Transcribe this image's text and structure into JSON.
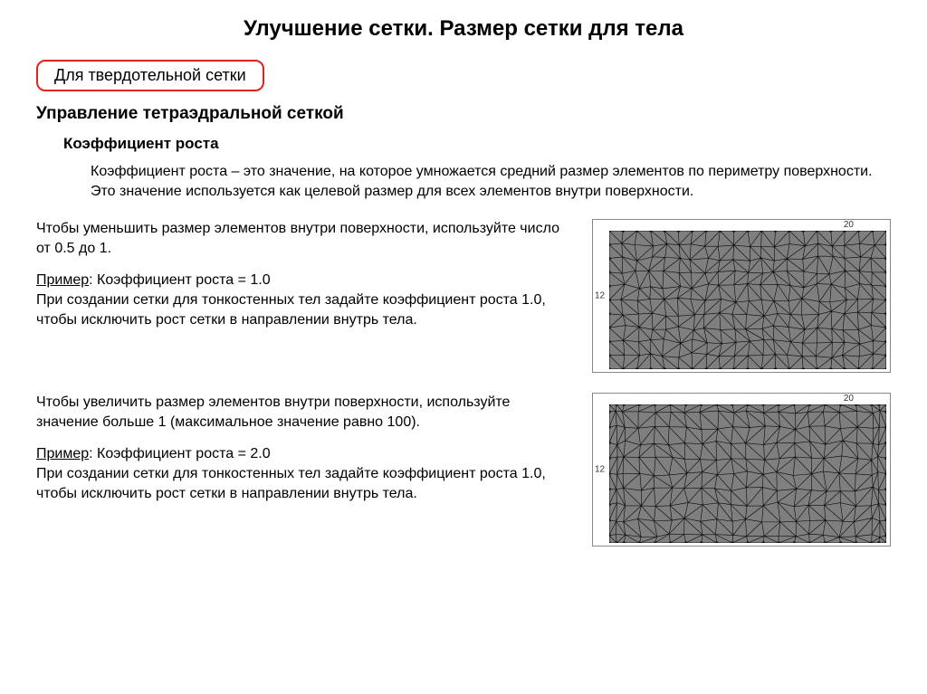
{
  "title": "Улучшение сетки. Размер сетки для тела",
  "tag": "Для твердотельной сетки",
  "subtitle": "Управление тетраэдральной сеткой",
  "section": {
    "title": "Коэффициент роста",
    "definition": "Коэффициент роста – это значение, на которое умножается средний размер элементов по периметру поверхности. Это значение используется как целевой размер для всех элементов внутри поверхности."
  },
  "block1": {
    "intro": "Чтобы уменьшить размер элементов внутри поверхности, используйте число от 0.5 до 1.",
    "example_label": "Пример",
    "example_value": ": Коэффициент роста = 1.0",
    "body": "При создании сетки для тонкостенных тел задайте коэффициент роста 1.0, чтобы исключить рост сетки в направлении внутрь тела."
  },
  "block2": {
    "intro": "Чтобы увеличить размер элементов внутри поверхности, используйте значение больше 1 (максимальное значение равно 100).",
    "example_label": "Пример",
    "example_value": ": Коэффициент роста = 2.0",
    "body": "При создании сетки для тонкостенных тел задайте коэффициент роста 1.0, чтобы исключить рост сетки в направлении внутрь тела."
  },
  "mesh": {
    "axis_top": "20",
    "axis_left": "12",
    "fill": "#7f7f7f",
    "stroke": "#0b0b0b",
    "stroke_width": 0.6,
    "fine": {
      "cols": 20,
      "rows": 10,
      "jitter": 0.18
    },
    "coarse": {
      "cols": 20,
      "rows": 10,
      "inner_scale": 2.1,
      "jitter": 0.15
    }
  }
}
